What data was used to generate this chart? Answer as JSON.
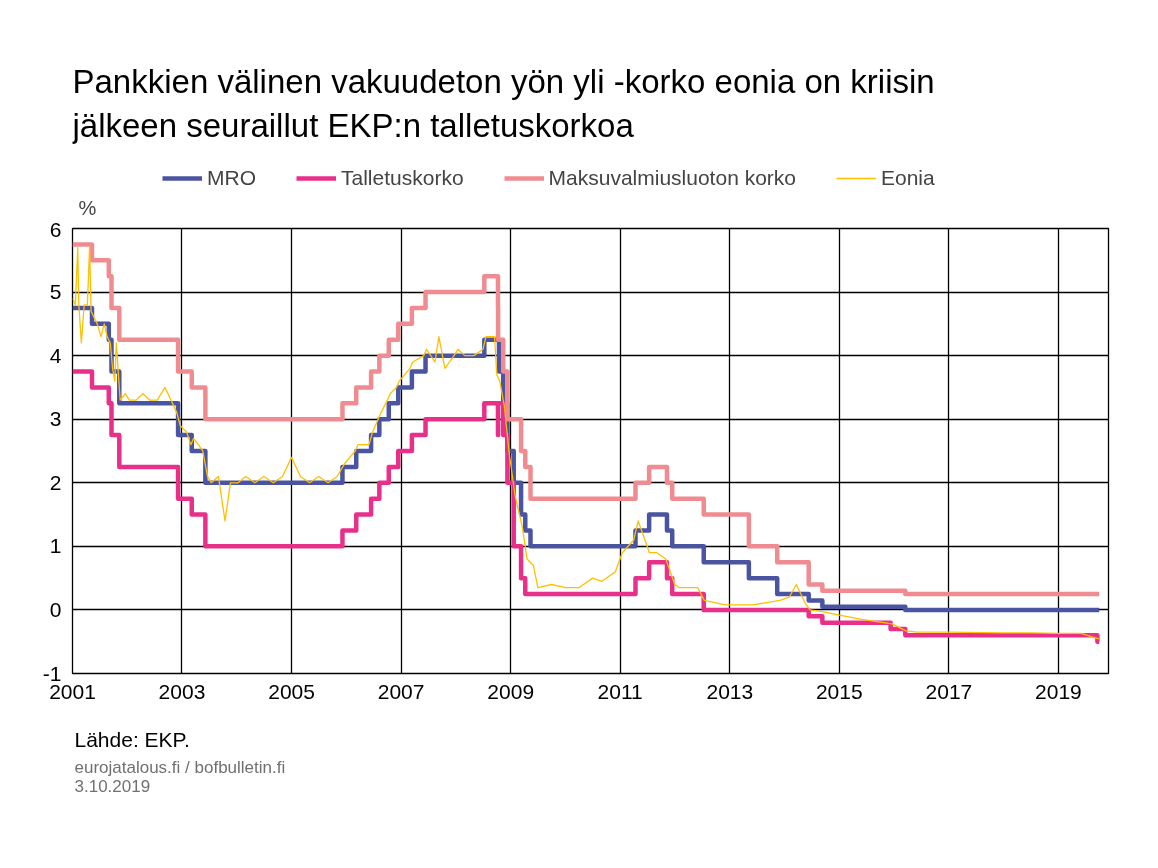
{
  "chart_data": {
    "type": "step",
    "title": "Pankkien välinen vakuudeton yön yli -korko eonia on kriisin\njälkeen seuraillut EKP:n talletuskorkoa",
    "ylabel": "%",
    "annotations": [
      "Lähde: EKP.",
      "eurojatalous.fi / bofbulletin.fi",
      "3.10.2019"
    ],
    "xlim": [
      "2001-01-01",
      "2019-12-01"
    ],
    "xticks": [
      {
        "value": "2001-01-01",
        "label": "2001"
      },
      {
        "value": "2003-01-01",
        "label": "2003"
      },
      {
        "value": "2005-01-01",
        "label": "2005"
      },
      {
        "value": "2007-01-01",
        "label": "2007"
      },
      {
        "value": "2009-01-01",
        "label": "2009"
      },
      {
        "value": "2011-01-01",
        "label": "2011"
      },
      {
        "value": "2013-01-01",
        "label": "2013"
      },
      {
        "value": "2015-01-01",
        "label": "2015"
      },
      {
        "value": "2017-01-01",
        "label": "2017"
      },
      {
        "value": "2019-01-01",
        "label": "2019"
      }
    ],
    "ylim": [
      -1,
      6
    ],
    "yticks": [
      -1,
      0,
      1,
      2,
      3,
      4,
      5,
      6
    ],
    "grid": true,
    "legend": "top",
    "series": [
      {
        "name": "MRO",
        "color": "#4b54a0",
        "x": [
          "2001-01-01",
          "2001-05-11",
          "2001-08-31",
          "2001-09-18",
          "2001-11-09",
          "2002-12-06",
          "2003-03-07",
          "2003-06-06",
          "2005-12-06",
          "2006-03-08",
          "2006-06-15",
          "2006-08-09",
          "2006-10-11",
          "2006-12-13",
          "2007-03-14",
          "2007-06-13",
          "2008-07-09",
          "2008-10-15",
          "2008-11-12",
          "2008-12-10",
          "2009-01-21",
          "2009-03-11",
          "2009-04-08",
          "2009-05-13",
          "2011-04-13",
          "2011-07-13",
          "2011-11-09",
          "2011-12-14",
          "2012-07-11",
          "2013-05-08",
          "2013-11-13",
          "2014-06-11",
          "2014-09-10",
          "2016-03-16",
          "2019-09-30"
        ],
        "values": [
          4.75,
          4.5,
          4.25,
          3.75,
          3.25,
          2.75,
          2.5,
          2.0,
          2.25,
          2.5,
          2.75,
          3.0,
          3.25,
          3.5,
          3.75,
          4.0,
          4.25,
          3.75,
          3.25,
          2.5,
          2.0,
          1.5,
          1.25,
          1.0,
          1.25,
          1.5,
          1.25,
          1.0,
          0.75,
          0.5,
          0.25,
          0.15,
          0.05,
          0.0,
          0.0
        ]
      },
      {
        "name": "Talletuskorko",
        "color": "#e8308a",
        "x": [
          "2001-01-01",
          "2001-05-11",
          "2001-08-31",
          "2001-09-18",
          "2001-11-09",
          "2002-12-06",
          "2003-03-07",
          "2003-06-06",
          "2005-12-06",
          "2006-03-08",
          "2006-06-15",
          "2006-08-09",
          "2006-10-11",
          "2006-12-13",
          "2007-03-14",
          "2007-06-13",
          "2008-07-09",
          "2008-10-08",
          "2008-10-09",
          "2008-11-12",
          "2008-12-10",
          "2009-01-21",
          "2009-03-11",
          "2009-04-08",
          "2011-04-13",
          "2011-07-13",
          "2011-11-09",
          "2011-12-14",
          "2012-07-11",
          "2014-06-11",
          "2014-09-10",
          "2015-12-09",
          "2016-03-16",
          "2019-09-18",
          "2019-09-30"
        ],
        "values": [
          3.75,
          3.5,
          3.25,
          2.75,
          2.25,
          1.75,
          1.5,
          1.0,
          1.25,
          1.5,
          1.75,
          2.0,
          2.25,
          2.5,
          2.75,
          3.0,
          3.25,
          2.75,
          3.25,
          2.75,
          2.0,
          1.0,
          0.5,
          0.25,
          0.5,
          0.75,
          0.5,
          0.25,
          0.0,
          -0.1,
          -0.2,
          -0.3,
          -0.4,
          -0.5,
          -0.5
        ]
      },
      {
        "name": "Maksuvalmiusluoton korko",
        "color": "#f08c91",
        "x": [
          "2001-01-01",
          "2001-05-11",
          "2001-08-31",
          "2001-09-18",
          "2001-11-09",
          "2002-12-06",
          "2003-03-07",
          "2003-06-06",
          "2005-12-06",
          "2006-03-08",
          "2006-06-15",
          "2006-08-09",
          "2006-10-11",
          "2006-12-13",
          "2007-03-14",
          "2007-06-13",
          "2008-07-09",
          "2008-10-08",
          "2008-10-09",
          "2008-11-12",
          "2008-12-10",
          "2009-01-21",
          "2009-03-11",
          "2009-04-08",
          "2009-05-13",
          "2011-04-13",
          "2011-07-13",
          "2011-11-09",
          "2011-12-14",
          "2012-07-11",
          "2013-05-08",
          "2013-11-13",
          "2014-06-11",
          "2014-09-10",
          "2016-03-16",
          "2019-09-30"
        ],
        "values": [
          5.75,
          5.5,
          5.25,
          4.75,
          4.25,
          3.75,
          3.5,
          3.0,
          3.25,
          3.5,
          3.75,
          4.0,
          4.25,
          4.5,
          4.75,
          5.0,
          5.25,
          4.75,
          4.25,
          3.75,
          3.0,
          3.0,
          2.5,
          2.25,
          1.75,
          2.0,
          2.25,
          2.0,
          1.75,
          1.5,
          1.0,
          0.75,
          0.4,
          0.3,
          0.25,
          0.25
        ]
      },
      {
        "name": "Eonia",
        "color": "#ffc000",
        "type": "line",
        "x": [
          "2001-01-02",
          "2001-01-20",
          "2001-02-05",
          "2001-02-12",
          "2001-03-01",
          "2001-03-20",
          "2001-04-10",
          "2001-04-25",
          "2001-05-05",
          "2001-05-25",
          "2001-06-15",
          "2001-07-10",
          "2001-08-01",
          "2001-08-20",
          "2001-09-10",
          "2001-09-25",
          "2001-10-10",
          "2001-10-20",
          "2001-11-15",
          "2001-12-20",
          "2002-01-15",
          "2002-03-01",
          "2002-04-15",
          "2002-06-01",
          "2002-07-20",
          "2002-09-10",
          "2002-10-20",
          "2002-11-28",
          "2002-12-20",
          "2003-02-01",
          "2003-03-01",
          "2003-03-20",
          "2003-04-20",
          "2003-05-20",
          "2003-06-20",
          "2003-07-15",
          "2003-09-01",
          "2003-10-15",
          "2003-11-20",
          "2004-01-10",
          "2004-03-01",
          "2004-05-01",
          "2004-06-30",
          "2004-09-01",
          "2004-11-01",
          "2004-12-31",
          "2005-03-01",
          "2005-05-01",
          "2005-07-01",
          "2005-09-01",
          "2005-11-01",
          "2005-12-20",
          "2006-03-01",
          "2006-03-20",
          "2006-06-01",
          "2006-06-25",
          "2006-08-01",
          "2006-08-20",
          "2006-10-01",
          "2006-10-20",
          "2006-12-01",
          "2006-12-20",
          "2007-03-01",
          "2007-03-20",
          "2007-06-01",
          "2007-06-20",
          "2007-08-15",
          "2007-09-10",
          "2007-10-20",
          "2007-12-20",
          "2008-01-15",
          "2008-03-01",
          "2008-05-01",
          "2008-06-30",
          "2008-07-20",
          "2008-09-15",
          "2008-09-30",
          "2008-10-20",
          "2008-11-20",
          "2008-12-20",
          "2009-01-30",
          "2009-03-20",
          "2009-04-20",
          "2009-06-01",
          "2009-07-01",
          "2009-10-01",
          "2010-01-01",
          "2010-04-01",
          "2010-07-01",
          "2010-09-01",
          "2010-11-30",
          "2011-01-15",
          "2011-04-01",
          "2011-05-01",
          "2011-07-15",
          "2011-09-01",
          "2011-11-01",
          "2011-12-01",
          "2011-12-31",
          "2012-02-01",
          "2012-06-01",
          "2012-07-15",
          "2012-12-01",
          "2013-06-01",
          "2013-12-01",
          "2014-02-01",
          "2014-03-20",
          "2014-05-20",
          "2014-06-20",
          "2014-09-20",
          "2015-01-01",
          "2015-06-01",
          "2015-12-20",
          "2016-03-20",
          "2016-06-01",
          "2017-01-01",
          "2018-01-01",
          "2018-07-01",
          "2019-01-01",
          "2019-06-01",
          "2019-09-20",
          "2019-09-30"
        ],
        "values": [
          4.9,
          4.8,
          5.7,
          4.8,
          4.2,
          4.8,
          4.8,
          5.7,
          4.7,
          4.6,
          4.5,
          4.3,
          4.5,
          4.3,
          4.2,
          3.8,
          3.6,
          4.2,
          3.3,
          3.4,
          3.3,
          3.3,
          3.4,
          3.3,
          3.3,
          3.5,
          3.3,
          3.1,
          2.9,
          2.8,
          2.6,
          2.7,
          2.6,
          2.5,
          2.1,
          2.0,
          2.1,
          1.4,
          2.0,
          2.0,
          2.1,
          2.0,
          2.1,
          2.0,
          2.1,
          2.4,
          2.1,
          2.0,
          2.1,
          2.0,
          2.1,
          2.3,
          2.5,
          2.6,
          2.6,
          2.8,
          3.0,
          3.1,
          3.3,
          3.4,
          3.5,
          3.6,
          3.8,
          3.9,
          4.0,
          4.1,
          3.9,
          4.3,
          3.8,
          4.0,
          4.1,
          4.0,
          4.0,
          4.1,
          4.3,
          4.3,
          3.7,
          3.6,
          3.2,
          2.5,
          1.8,
          1.3,
          0.8,
          0.7,
          0.35,
          0.4,
          0.35,
          0.35,
          0.5,
          0.45,
          0.6,
          0.9,
          1.1,
          1.4,
          0.9,
          0.9,
          0.8,
          0.6,
          0.4,
          0.35,
          0.35,
          0.15,
          0.08,
          0.08,
          0.15,
          0.2,
          0.4,
          0.1,
          0.0,
          -0.03,
          -0.08,
          -0.15,
          -0.22,
          -0.33,
          -0.35,
          -0.35,
          -0.36,
          -0.36,
          -0.37,
          -0.37,
          -0.45,
          -0.45
        ]
      }
    ]
  }
}
